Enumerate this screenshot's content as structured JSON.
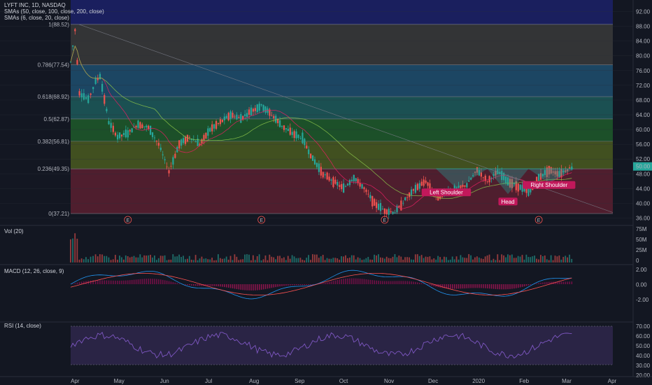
{
  "header": {
    "symbol": "LYFT INC, 1D, NASDAQ",
    "sma_long": "SMAs (50, close, 100, close, 200, close)",
    "sma_short": "SMAs (6, close, 20, close)"
  },
  "colors": {
    "bg": "#131722",
    "up": "#26a69a",
    "down": "#ef5350",
    "grid": "#2a2e39",
    "macd": "#2196f3",
    "signal": "#ff5252",
    "rsi": "#7e57c2",
    "sma_a": "#e91e63",
    "sma_b": "#8bc34a",
    "pattern": "#26a69a"
  },
  "price_axis": [
    "92.00",
    "88.00",
    "84.00",
    "80.00",
    "76.00",
    "72.00",
    "68.00",
    "64.00",
    "60.00",
    "56.00",
    "52.00",
    "48.00",
    "44.00",
    "40.00",
    "36.00"
  ],
  "last_price": "50.00",
  "fib_levels": [
    {
      "label": "1(88.52)",
      "value": 88.52,
      "fill": "#3a3a3a"
    },
    {
      "label": "0.786(77.54)",
      "value": 77.54,
      "fill": "#1e4f6e"
    },
    {
      "label": "0.618(68.92)",
      "value": 68.92,
      "fill": "#1d5b5b"
    },
    {
      "label": "0.5(62.87)",
      "value": 62.87,
      "fill": "#1e5b2a"
    },
    {
      "label": "0.382(56.81)",
      "value": 56.81,
      "fill": "#4a5a20"
    },
    {
      "label": "0.236(49.35)",
      "value": 49.35,
      "fill": "#5a2030"
    },
    {
      "label": "0(37.21)",
      "value": 37.21,
      "fill": ""
    }
  ],
  "earnings_marker": "E",
  "pattern_labels": [
    "Left Shoulder",
    "Head",
    "Right Shoulder"
  ],
  "panels": {
    "volume": {
      "title": "Vol (20)",
      "axis": [
        "75M",
        "50M",
        "25M",
        "0"
      ]
    },
    "macd": {
      "title": "MACD (12, 26, close, 9)",
      "axis": [
        "2.00",
        "0.00",
        "-2.00"
      ]
    },
    "rsi": {
      "title": "RSI (14, close)",
      "axis": [
        "70.00",
        "60.00",
        "50.00",
        "40.00",
        "30.00",
        "20.00"
      ]
    }
  },
  "time_axis": [
    "Apr",
    "May",
    "Jun",
    "Jul",
    "Aug",
    "Sep",
    "Oct",
    "Nov",
    "Dec",
    "2020",
    "Feb",
    "Mar",
    "Apr"
  ],
  "chart_data": {
    "type": "candlestick",
    "title": "LYFT INC, 1D, NASDAQ",
    "ylim": [
      34,
      94
    ],
    "close_path": [
      [
        "2019-03-29",
        78.3
      ],
      [
        "2019-04-01",
        87.0
      ],
      [
        "2019-04-04",
        70.0
      ],
      [
        "2019-04-10",
        68.0
      ],
      [
        "2019-04-15",
        73.0
      ],
      [
        "2019-04-18",
        74.5
      ],
      [
        "2019-04-24",
        62.0
      ],
      [
        "2019-04-30",
        58.0
      ],
      [
        "2019-05-07",
        59.0
      ],
      [
        "2019-05-14",
        61.5
      ],
      [
        "2019-05-21",
        60.5
      ],
      [
        "2019-05-28",
        56.0
      ],
      [
        "2019-06-04",
        48.6
      ],
      [
        "2019-06-11",
        56.0
      ],
      [
        "2019-06-18",
        58.0
      ],
      [
        "2019-06-25",
        56.0
      ],
      [
        "2019-07-02",
        60.0
      ],
      [
        "2019-07-09",
        62.0
      ],
      [
        "2019-07-16",
        64.0
      ],
      [
        "2019-07-23",
        63.0
      ],
      [
        "2019-07-30",
        65.0
      ],
      [
        "2019-08-06",
        66.5
      ],
      [
        "2019-08-13",
        64.0
      ],
      [
        "2019-08-20",
        61.0
      ],
      [
        "2019-08-27",
        59.0
      ],
      [
        "2019-09-03",
        57.5
      ],
      [
        "2019-09-10",
        52.0
      ],
      [
        "2019-09-17",
        48.0
      ],
      [
        "2019-09-24",
        46.0
      ],
      [
        "2019-10-01",
        44.0
      ],
      [
        "2019-10-08",
        47.0
      ],
      [
        "2019-10-15",
        44.0
      ],
      [
        "2019-10-22",
        40.0
      ],
      [
        "2019-10-29",
        38.0
      ],
      [
        "2019-11-05",
        37.5
      ],
      [
        "2019-11-12",
        41.0
      ],
      [
        "2019-11-19",
        44.0
      ],
      [
        "2019-11-26",
        46.0
      ],
      [
        "2019-12-03",
        42.0
      ],
      [
        "2019-12-10",
        43.0
      ],
      [
        "2019-12-17",
        44.0
      ],
      [
        "2019-12-24",
        45.0
      ],
      [
        "2019-12-31",
        49.0
      ],
      [
        "2020-01-07",
        46.0
      ],
      [
        "2020-01-14",
        48.5
      ],
      [
        "2020-01-21",
        46.0
      ],
      [
        "2020-01-28",
        44.5
      ],
      [
        "2020-02-04",
        43.0
      ],
      [
        "2020-02-11",
        47.0
      ],
      [
        "2020-02-18",
        49.0
      ],
      [
        "2020-02-25",
        48.0
      ],
      [
        "2020-03-03",
        49.5
      ],
      [
        "2020-03-06",
        50.0
      ]
    ],
    "note": "H&S pattern: Left Shoulder ~Dec 2019, Head ~Feb 2020, Right Shoulder ~Mar 2020"
  }
}
